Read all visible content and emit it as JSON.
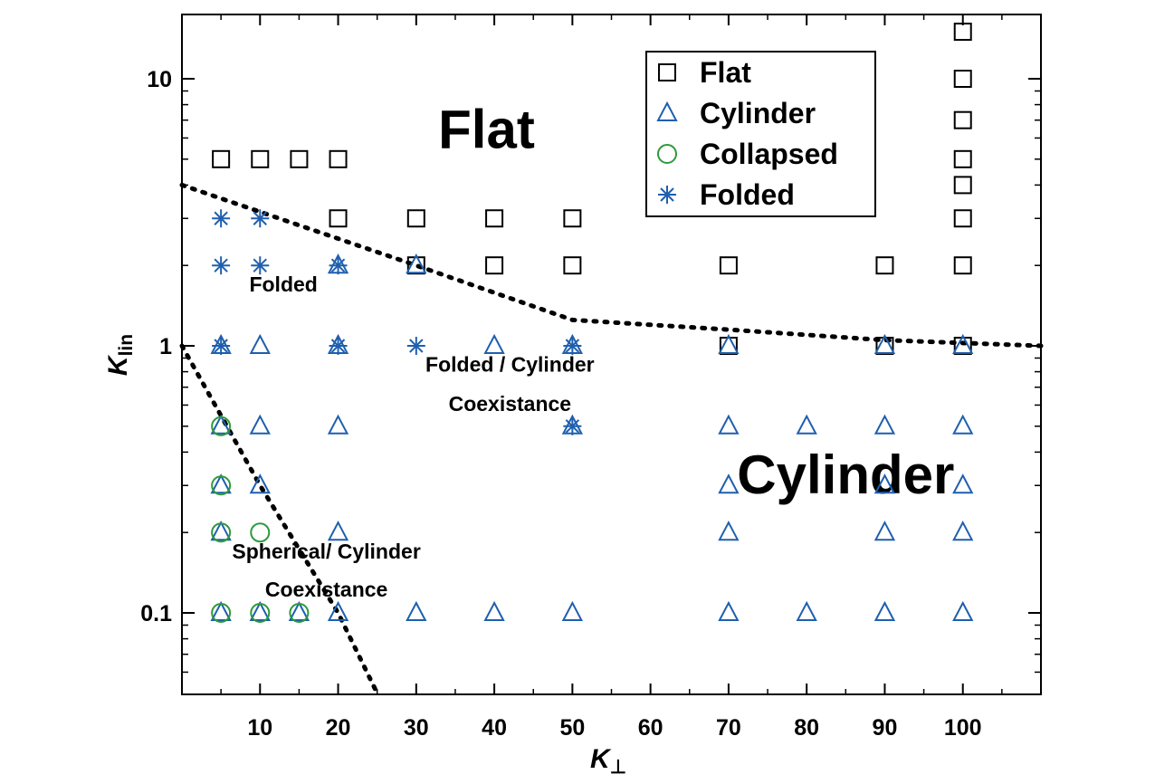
{
  "chart_data": {
    "type": "scatter",
    "title": "",
    "xlabel": "K",
    "xlabel_sub": "⊥",
    "ylabel": "K",
    "ylabel_sub": "lin",
    "xlim": [
      0,
      110
    ],
    "ylim": [
      0.05,
      16
    ],
    "y_scale": "log",
    "x_ticks": [
      10,
      20,
      30,
      40,
      50,
      60,
      70,
      80,
      90,
      100
    ],
    "x_tick_labels": [
      "10",
      "20",
      "30",
      "40",
      "50",
      "60",
      "70",
      "80",
      "90",
      "100"
    ],
    "y_ticks": [
      0.1,
      1,
      10
    ],
    "y_tick_labels": [
      "0.1",
      "1",
      "10"
    ],
    "legend_position": "top-right",
    "grid": false,
    "colors": {
      "flat": "#000000",
      "cylinder": "#1f5fae",
      "collapsed": "#2e9a3c",
      "folded": "#1f5fae",
      "boundary": "#000000"
    },
    "series": [
      {
        "name": "Flat",
        "marker": "square",
        "points": [
          [
            5,
            5
          ],
          [
            10,
            5
          ],
          [
            15,
            5
          ],
          [
            20,
            5
          ],
          [
            20,
            3
          ],
          [
            30,
            3
          ],
          [
            40,
            3
          ],
          [
            50,
            3
          ],
          [
            30,
            2
          ],
          [
            40,
            2
          ],
          [
            50,
            2
          ],
          [
            70,
            2
          ],
          [
            90,
            2
          ],
          [
            100,
            2
          ],
          [
            70,
            1
          ],
          [
            90,
            1
          ],
          [
            100,
            1
          ],
          [
            100,
            15
          ],
          [
            100,
            10
          ],
          [
            100,
            7
          ],
          [
            100,
            5
          ],
          [
            100,
            4
          ],
          [
            100,
            3
          ]
        ]
      },
      {
        "name": "Cylinder",
        "marker": "triangle",
        "points": [
          [
            5,
            1
          ],
          [
            10,
            1
          ],
          [
            20,
            1
          ],
          [
            40,
            1
          ],
          [
            50,
            1
          ],
          [
            70,
            1
          ],
          [
            90,
            1
          ],
          [
            100,
            1
          ],
          [
            5,
            0.5
          ],
          [
            10,
            0.5
          ],
          [
            20,
            0.5
          ],
          [
            50,
            0.5
          ],
          [
            70,
            0.5
          ],
          [
            80,
            0.5
          ],
          [
            90,
            0.5
          ],
          [
            100,
            0.5
          ],
          [
            5,
            0.3
          ],
          [
            10,
            0.3
          ],
          [
            70,
            0.3
          ],
          [
            90,
            0.3
          ],
          [
            100,
            0.3
          ],
          [
            5,
            0.2
          ],
          [
            20,
            0.2
          ],
          [
            70,
            0.2
          ],
          [
            90,
            0.2
          ],
          [
            100,
            0.2
          ],
          [
            5,
            0.1
          ],
          [
            10,
            0.1
          ],
          [
            15,
            0.1
          ],
          [
            20,
            0.1
          ],
          [
            30,
            0.1
          ],
          [
            40,
            0.1
          ],
          [
            50,
            0.1
          ],
          [
            70,
            0.1
          ],
          [
            80,
            0.1
          ],
          [
            90,
            0.1
          ],
          [
            100,
            0.1
          ],
          [
            20,
            2
          ],
          [
            30,
            2
          ]
        ]
      },
      {
        "name": "Collapsed",
        "marker": "circle",
        "points": [
          [
            5,
            0.5
          ],
          [
            5,
            0.3
          ],
          [
            5,
            0.2
          ],
          [
            10,
            0.2
          ],
          [
            5,
            0.1
          ],
          [
            10,
            0.1
          ],
          [
            15,
            0.1
          ]
        ]
      },
      {
        "name": "Folded",
        "marker": "asterisk",
        "points": [
          [
            5,
            3
          ],
          [
            10,
            3
          ],
          [
            5,
            2
          ],
          [
            10,
            2
          ],
          [
            20,
            2
          ],
          [
            5,
            1
          ],
          [
            20,
            1
          ],
          [
            30,
            1
          ],
          [
            50,
            1
          ],
          [
            50,
            0.5
          ]
        ]
      }
    ],
    "boundaries": [
      {
        "points": [
          [
            0,
            4
          ],
          [
            30,
            2
          ],
          [
            50,
            1.25
          ],
          [
            70,
            1.15
          ],
          [
            90,
            1.05
          ],
          [
            110,
            1
          ]
        ]
      },
      {
        "points": [
          [
            0,
            1
          ],
          [
            10,
            0.3
          ],
          [
            20,
            0.1
          ],
          [
            25,
            0.05
          ]
        ]
      }
    ],
    "annotations": [
      {
        "text": "Flat",
        "size": "large",
        "x": 39,
        "y": 5.5
      },
      {
        "text": "Cylinder",
        "size": "large",
        "x": 85,
        "y": 0.28
      },
      {
        "text": "Folded",
        "size": "small",
        "x": 13,
        "y": 1.6
      },
      {
        "text": "Folded / Cylinder",
        "size": "small",
        "x": 42,
        "y": 0.8
      },
      {
        "text": "Coexistance",
        "size": "small",
        "x": 42,
        "y": 0.57
      },
      {
        "text": "Spherical/ Cylinder",
        "size": "small",
        "x": 18.5,
        "y": 0.16
      },
      {
        "text": "Coexistance",
        "size": "small",
        "x": 18.5,
        "y": 0.115
      }
    ]
  }
}
